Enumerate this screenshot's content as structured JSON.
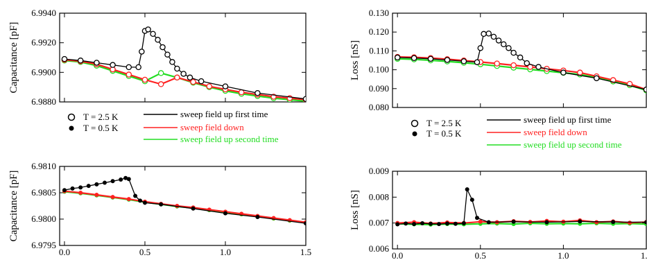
{
  "legend": {
    "markers": [
      {
        "label": "T = 2.5 K",
        "marker": "open-circle"
      },
      {
        "label": "T = 0.5 K",
        "marker": "filled-circle"
      }
    ],
    "lines": [
      {
        "label": "sweep field up first time",
        "color": "#000000"
      },
      {
        "label": "sweep field down",
        "color": "#ff2020"
      },
      {
        "label": "sweep field up second time",
        "color": "#22dd22"
      }
    ]
  },
  "chart_data": [
    {
      "id": "capacitance-2p5K",
      "type": "scatter",
      "ylabel": "Capacitance [pF]",
      "xlim": [
        -0.03,
        1.5
      ],
      "ylim": [
        6.988,
        6.994
      ],
      "xticks": [],
      "yticks": [
        "6.9880",
        "6.9900",
        "6.9920",
        "6.9940"
      ],
      "ytick_values": [
        6.988,
        6.99,
        6.992,
        6.994
      ],
      "marker": "open-circle",
      "series": [
        {
          "name": "sweep field up first time",
          "color": "#000000",
          "x": [
            0,
            0.1,
            0.2,
            0.3,
            0.4,
            0.46,
            0.48,
            0.5,
            0.52,
            0.55,
            0.58,
            0.61,
            0.64,
            0.67,
            0.7,
            0.74,
            0.78,
            0.85,
            1.0,
            1.2,
            1.5
          ],
          "y": [
            6.9909,
            6.9908,
            6.99065,
            6.9905,
            6.99035,
            6.99035,
            6.9914,
            6.9928,
            6.9929,
            6.9926,
            6.9922,
            6.9917,
            6.9912,
            6.9907,
            6.99025,
            6.9899,
            6.98965,
            6.9894,
            6.98905,
            6.9886,
            6.9882
          ]
        },
        {
          "name": "sweep field down",
          "color": "#ff2020",
          "x": [
            0,
            0.1,
            0.2,
            0.3,
            0.4,
            0.5,
            0.6,
            0.7,
            0.8,
            0.9,
            1.0,
            1.1,
            1.2,
            1.3,
            1.4,
            1.5
          ],
          "y": [
            6.99085,
            6.99075,
            6.99055,
            6.9902,
            6.98985,
            6.9895,
            6.9892,
            6.98965,
            6.98935,
            6.98905,
            6.98885,
            6.98865,
            6.9885,
            6.98835,
            6.98825,
            6.98815
          ]
        },
        {
          "name": "sweep field up second time",
          "color": "#22dd22",
          "x": [
            0,
            0.1,
            0.2,
            0.3,
            0.4,
            0.5,
            0.6,
            0.7,
            0.8,
            0.9,
            1.0,
            1.1,
            1.2,
            1.3,
            1.4,
            1.5
          ],
          "y": [
            6.9908,
            6.9907,
            6.99045,
            6.9901,
            6.98975,
            6.9894,
            6.98995,
            6.98965,
            6.9893,
            6.989,
            6.98875,
            6.98855,
            6.9884,
            6.98825,
            6.98815,
            6.98805
          ]
        }
      ]
    },
    {
      "id": "capacitance-0p5K",
      "type": "scatter",
      "ylabel": "Capacitance [pF]",
      "xlim": [
        -0.03,
        1.5
      ],
      "ylim": [
        6.9795,
        6.981
      ],
      "xticks": [
        "0.0",
        "0.5",
        "1.0",
        "1.5"
      ],
      "xtick_values": [
        0,
        0.5,
        1.0,
        1.5
      ],
      "yticks": [
        "6.9795",
        "6.9800",
        "6.9805",
        "6.9810"
      ],
      "ytick_values": [
        6.9795,
        6.98,
        6.9805,
        6.981
      ],
      "marker": "filled-circle",
      "series": [
        {
          "name": "sweep field up first time",
          "color": "#000000",
          "x": [
            0,
            0.05,
            0.1,
            0.15,
            0.2,
            0.25,
            0.3,
            0.35,
            0.38,
            0.4,
            0.44,
            0.47,
            0.5,
            0.6,
            0.8,
            1.0,
            1.2,
            1.5
          ],
          "y": [
            6.98055,
            6.98058,
            6.9806,
            6.98063,
            6.98066,
            6.98069,
            6.98072,
            6.98075,
            6.98078,
            6.98076,
            6.98044,
            6.98035,
            6.98031,
            6.98028,
            6.9802,
            6.98011,
            6.98004,
            6.97992
          ]
        },
        {
          "name": "sweep field down",
          "color": "#ff2020",
          "x": [
            0,
            0.1,
            0.2,
            0.3,
            0.4,
            0.5,
            0.6,
            0.7,
            0.8,
            0.9,
            1.0,
            1.1,
            1.2,
            1.3,
            1.4,
            1.5
          ],
          "y": [
            6.98053,
            6.9805,
            6.98046,
            6.98042,
            6.98038,
            6.98033,
            6.98029,
            6.98025,
            6.98022,
            6.98018,
            6.98014,
            6.9801,
            6.98006,
            6.98002,
            6.97998,
            6.97994
          ]
        },
        {
          "name": "sweep field up second time",
          "color": "#22dd22",
          "x": [
            0,
            0.1,
            0.2,
            0.3,
            0.4,
            0.5,
            0.6,
            0.7,
            0.8,
            0.9,
            1.0,
            1.1,
            1.2,
            1.3,
            1.4,
            1.5
          ],
          "y": [
            6.98052,
            6.98049,
            6.98045,
            6.98041,
            6.98037,
            6.98032,
            6.98028,
            6.98024,
            6.98021,
            6.98017,
            6.98013,
            6.98009,
            6.98005,
            6.98001,
            6.97997,
            6.97993
          ]
        }
      ]
    },
    {
      "id": "loss-2p5K",
      "type": "scatter",
      "ylabel": "Loss [nS]",
      "xlim": [
        -0.03,
        1.5
      ],
      "ylim": [
        0.08,
        0.13
      ],
      "xticks": [],
      "yticks": [
        "0.080",
        "0.090",
        "0.100",
        "0.110",
        "0.120",
        "0.130"
      ],
      "ytick_values": [
        0.08,
        0.09,
        0.1,
        0.11,
        0.12,
        0.13
      ],
      "marker": "open-circle",
      "series": [
        {
          "name": "sweep field up first time",
          "color": "#000000",
          "x": [
            0,
            0.1,
            0.2,
            0.3,
            0.4,
            0.48,
            0.5,
            0.52,
            0.55,
            0.58,
            0.61,
            0.64,
            0.67,
            0.7,
            0.74,
            0.78,
            0.85,
            1.0,
            1.2,
            1.5
          ],
          "y": [
            0.1065,
            0.1062,
            0.1058,
            0.1052,
            0.1045,
            0.104,
            0.1115,
            0.119,
            0.1192,
            0.1175,
            0.1155,
            0.1135,
            0.1115,
            0.109,
            0.1065,
            0.1035,
            0.1015,
            0.0985,
            0.0955,
            0.0895
          ]
        },
        {
          "name": "sweep field down",
          "color": "#ff2020",
          "x": [
            0,
            0.1,
            0.2,
            0.3,
            0.4,
            0.5,
            0.6,
            0.7,
            0.8,
            0.9,
            1.0,
            1.1,
            1.2,
            1.3,
            1.4,
            1.5
          ],
          "y": [
            0.1068,
            0.1066,
            0.1062,
            0.1056,
            0.1049,
            0.1041,
            0.1033,
            0.1024,
            0.1015,
            0.1005,
            0.0996,
            0.0985,
            0.0965,
            0.0945,
            0.0925,
            0.0895
          ]
        },
        {
          "name": "sweep field up second time",
          "color": "#22dd22",
          "x": [
            0,
            0.1,
            0.2,
            0.3,
            0.4,
            0.5,
            0.6,
            0.7,
            0.8,
            0.9,
            1.0,
            1.1,
            1.2,
            1.3,
            1.4,
            1.5
          ],
          "y": [
            0.1058,
            0.1055,
            0.105,
            0.1044,
            0.1037,
            0.1029,
            0.102,
            0.1011,
            0.1002,
            0.0993,
            0.0984,
            0.0975,
            0.0958,
            0.0938,
            0.0918,
            0.089
          ]
        }
      ]
    },
    {
      "id": "loss-0p5K",
      "type": "scatter",
      "ylabel": "Loss [nS]",
      "xlim": [
        -0.03,
        1.5
      ],
      "ylim": [
        0.006,
        0.009
      ],
      "xticks": [
        "0.0",
        "0.5",
        "1.0",
        "1.5"
      ],
      "xtick_values": [
        0,
        0.5,
        1.0,
        1.5
      ],
      "yticks": [
        "0.006",
        "0.007",
        "0.008",
        "0.009"
      ],
      "ytick_values": [
        0.006,
        0.007,
        0.008,
        0.009
      ],
      "marker": "filled-circle",
      "series": [
        {
          "name": "sweep field up first time",
          "color": "#000000",
          "x": [
            0,
            0.05,
            0.1,
            0.15,
            0.2,
            0.25,
            0.3,
            0.35,
            0.4,
            0.42,
            0.45,
            0.48,
            0.55,
            0.7,
            0.9,
            1.1,
            1.3,
            1.5
          ],
          "y": [
            0.00695,
            0.00698,
            0.00696,
            0.00699,
            0.00697,
            0.00696,
            0.00698,
            0.00697,
            0.00699,
            0.0083,
            0.0079,
            0.0072,
            0.00703,
            0.00705,
            0.00703,
            0.00706,
            0.00704,
            0.00703
          ]
        },
        {
          "name": "sweep field down",
          "color": "#ff2020",
          "x": [
            0,
            0.1,
            0.2,
            0.3,
            0.4,
            0.5,
            0.6,
            0.7,
            0.8,
            0.9,
            1.0,
            1.1,
            1.2,
            1.3,
            1.4,
            1.5
          ],
          "y": [
            0.007,
            0.00703,
            0.00698,
            0.00702,
            0.007,
            0.00705,
            0.00703,
            0.00707,
            0.00704,
            0.00708,
            0.00705,
            0.0071,
            0.00703,
            0.00706,
            0.00701,
            0.00704
          ]
        },
        {
          "name": "sweep field up second time",
          "color": "#22dd22",
          "x": [
            0,
            0.1,
            0.2,
            0.3,
            0.4,
            0.5,
            0.6,
            0.7,
            0.8,
            0.9,
            1.0,
            1.1,
            1.2,
            1.3,
            1.4,
            1.5
          ],
          "y": [
            0.00697,
            0.00695,
            0.00694,
            0.00696,
            0.00695,
            0.00697,
            0.00698,
            0.00696,
            0.00699,
            0.00697,
            0.00698,
            0.00697,
            0.00699,
            0.00697,
            0.00698,
            0.00696
          ]
        }
      ]
    }
  ]
}
